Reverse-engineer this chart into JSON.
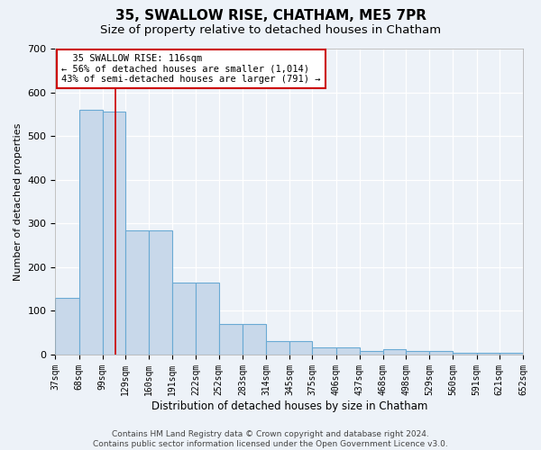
{
  "title1": "35, SWALLOW RISE, CHATHAM, ME5 7PR",
  "title2": "Size of property relative to detached houses in Chatham",
  "xlabel": "Distribution of detached houses by size in Chatham",
  "ylabel": "Number of detached properties",
  "footnote": "Contains HM Land Registry data © Crown copyright and database right 2024.\nContains public sector information licensed under the Open Government Licence v3.0.",
  "bar_edges": [
    37,
    68,
    99,
    129,
    160,
    191,
    222,
    252,
    283,
    314,
    345,
    375,
    406,
    437,
    468,
    498,
    529,
    560,
    591,
    621,
    652
  ],
  "bar_heights": [
    130,
    560,
    555,
    285,
    285,
    165,
    165,
    70,
    70,
    30,
    30,
    17,
    17,
    8,
    12,
    8,
    8,
    5,
    5,
    5,
    2
  ],
  "bar_color": "#c8d8ea",
  "bar_edge_color": "#6aaad4",
  "property_line_x": 116,
  "property_line_color": "#cc0000",
  "annotation_text": "  35 SWALLOW RISE: 116sqm\n← 56% of detached houses are smaller (1,014)\n43% of semi-detached houses are larger (791) →",
  "annotation_box_color": "#ffffff",
  "annotation_box_edge_color": "#cc0000",
  "ylim": [
    0,
    700
  ],
  "yticks": [
    0,
    100,
    200,
    300,
    400,
    500,
    600,
    700
  ],
  "background_color": "#edf2f8",
  "grid_color": "#ffffff",
  "title1_fontsize": 11,
  "title2_fontsize": 9.5,
  "xlabel_fontsize": 8.5,
  "ylabel_fontsize": 8,
  "tick_fontsize": 7,
  "annotation_fontsize": 7.5,
  "footnote_fontsize": 6.5
}
